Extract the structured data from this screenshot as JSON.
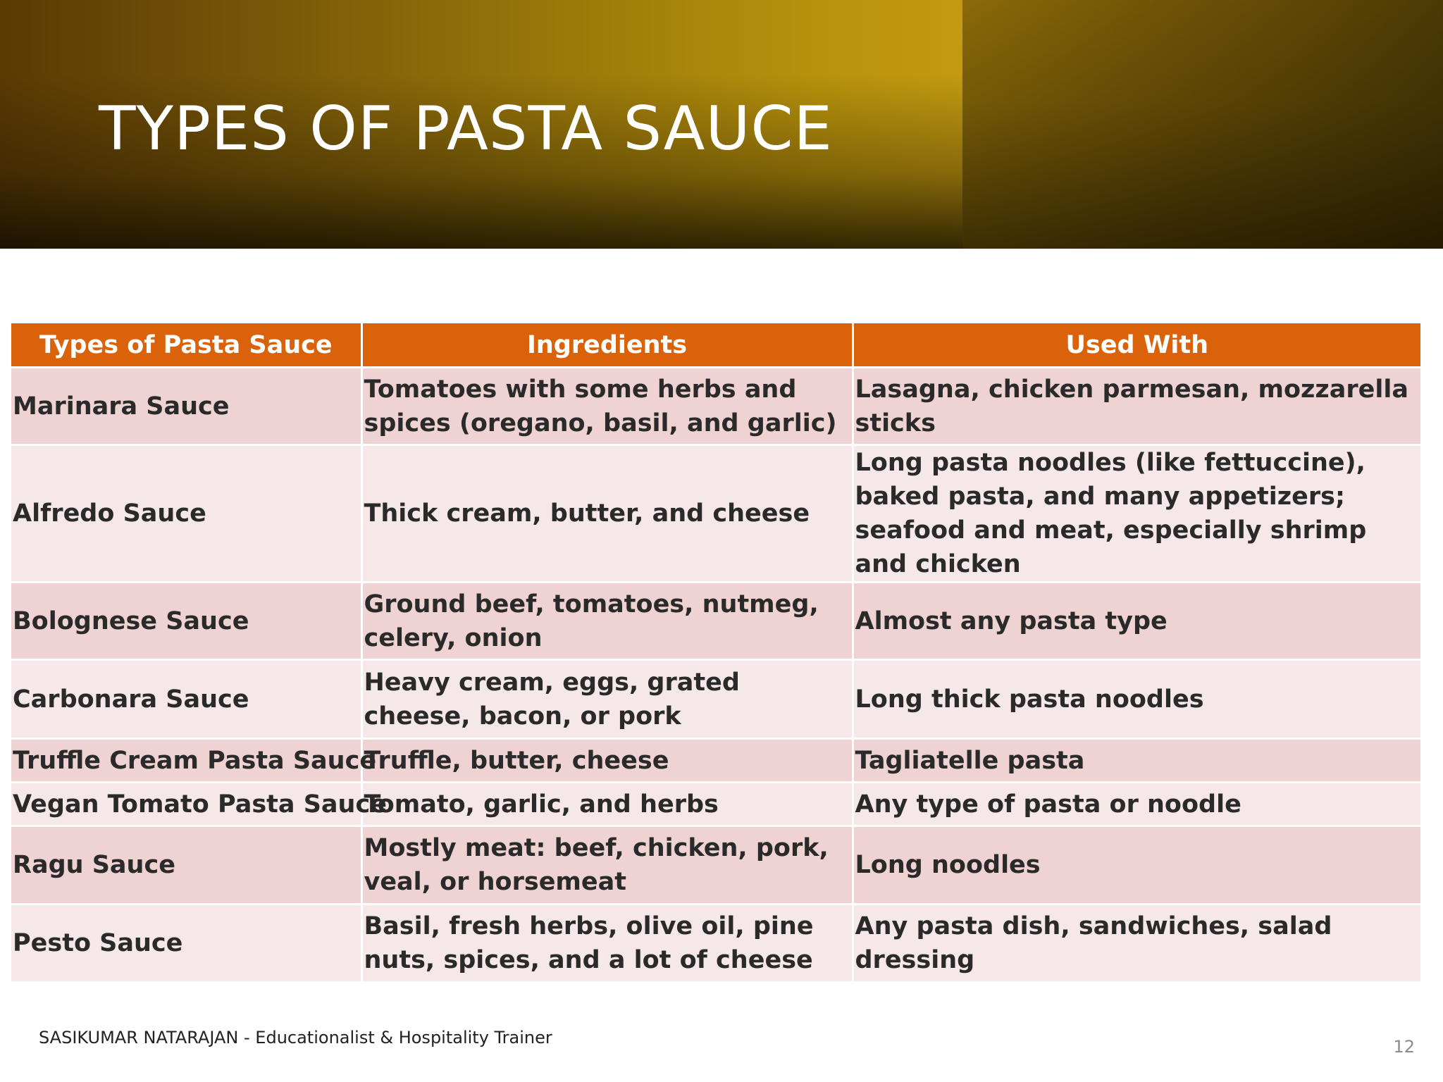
{
  "slide": {
    "title": "TYPES OF PASTA SAUCE",
    "footer": "SASIKUMAR NATARAJAN - Educationalist & Hospitality Trainer",
    "page_number": "12"
  },
  "table": {
    "headers": [
      "Types of Pasta Sauce",
      "Ingredients",
      "Used With"
    ],
    "rows": [
      [
        "Marinara Sauce",
        "Tomatoes with some herbs and spices (oregano, basil, and garlic)",
        "Lasagna, chicken parmesan, mozzarella sticks"
      ],
      [
        "Alfredo Sauce",
        "Thick cream, butter, and cheese",
        "Long pasta noodles (like fettuccine), baked pasta, and many appetizers; seafood and meat, especially shrimp and chicken"
      ],
      [
        "Bolognese Sauce",
        "Ground beef, tomatoes, nutmeg, celery, onion",
        "Almost any pasta type"
      ],
      [
        "Carbonara Sauce",
        "Heavy cream, eggs, grated cheese, bacon, or pork",
        "Long thick pasta noodles"
      ],
      [
        "Truffle Cream Pasta Sauce",
        "Truffle, butter, cheese",
        "Tagliatelle pasta"
      ],
      [
        "Vegan Tomato Pasta Sauce",
        "Tomato, garlic, and herbs",
        "Any type of pasta or noodle"
      ],
      [
        "Ragu Sauce",
        "Mostly meat: beef, chicken, pork, veal, or horsemeat",
        "Long noodles"
      ],
      [
        "Pesto Sauce",
        "Basil, fresh herbs, olive oil, pine nuts, spices, and a lot of cheese",
        "Any pasta dish, sandwiches, salad dressing"
      ]
    ]
  },
  "colors": {
    "header_fill": "#d9620a",
    "row_dark": "#efd3d2",
    "row_light": "#f6e8e8",
    "banner_gold": "#c39a10"
  }
}
